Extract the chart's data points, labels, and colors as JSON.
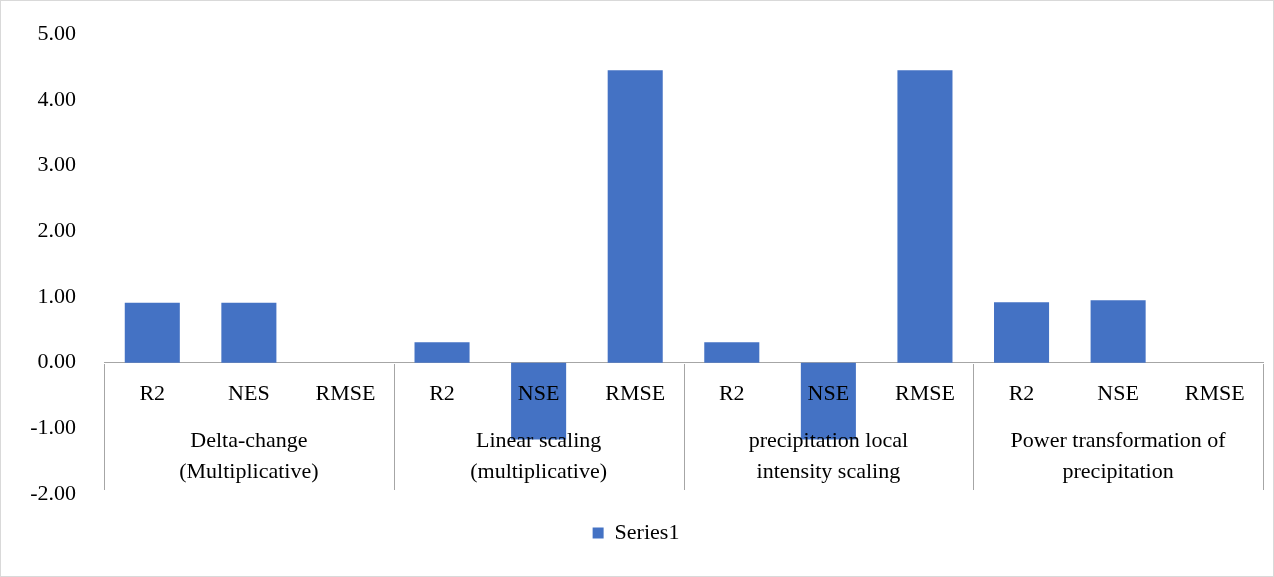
{
  "chart_data": {
    "type": "bar",
    "categories": [
      "R2",
      "NES",
      "RMSE",
      "R2",
      "NSE",
      "RMSE",
      "R2",
      "NSE",
      "RMSE",
      "R2",
      "NSE",
      "RMSE"
    ],
    "series": [
      {
        "name": "Series1",
        "color": "#4472c4",
        "values": [
          0.91,
          0.91,
          0,
          0.31,
          -1.17,
          4.45,
          0.31,
          -1.17,
          4.45,
          0.92,
          0.95,
          0
        ]
      }
    ],
    "ylim": [
      -2,
      5
    ],
    "yticks": [
      {
        "value": -2,
        "label": "-2.00"
      },
      {
        "value": -1,
        "label": "-1.00"
      },
      {
        "value": 0,
        "label": "0.00"
      },
      {
        "value": 1,
        "label": "1.00"
      },
      {
        "value": 2,
        "label": "2.00"
      },
      {
        "value": 3,
        "label": "3.00"
      },
      {
        "value": 4,
        "label": "4.00"
      },
      {
        "value": 5,
        "label": "5.00"
      }
    ],
    "annotations": [
      "Delta-change (Multiplicative)",
      "Linear scaling (multiplicative)",
      "precipitation local intensity scaling",
      "Power transformation of precipitation"
    ],
    "legend": "bottom"
  }
}
